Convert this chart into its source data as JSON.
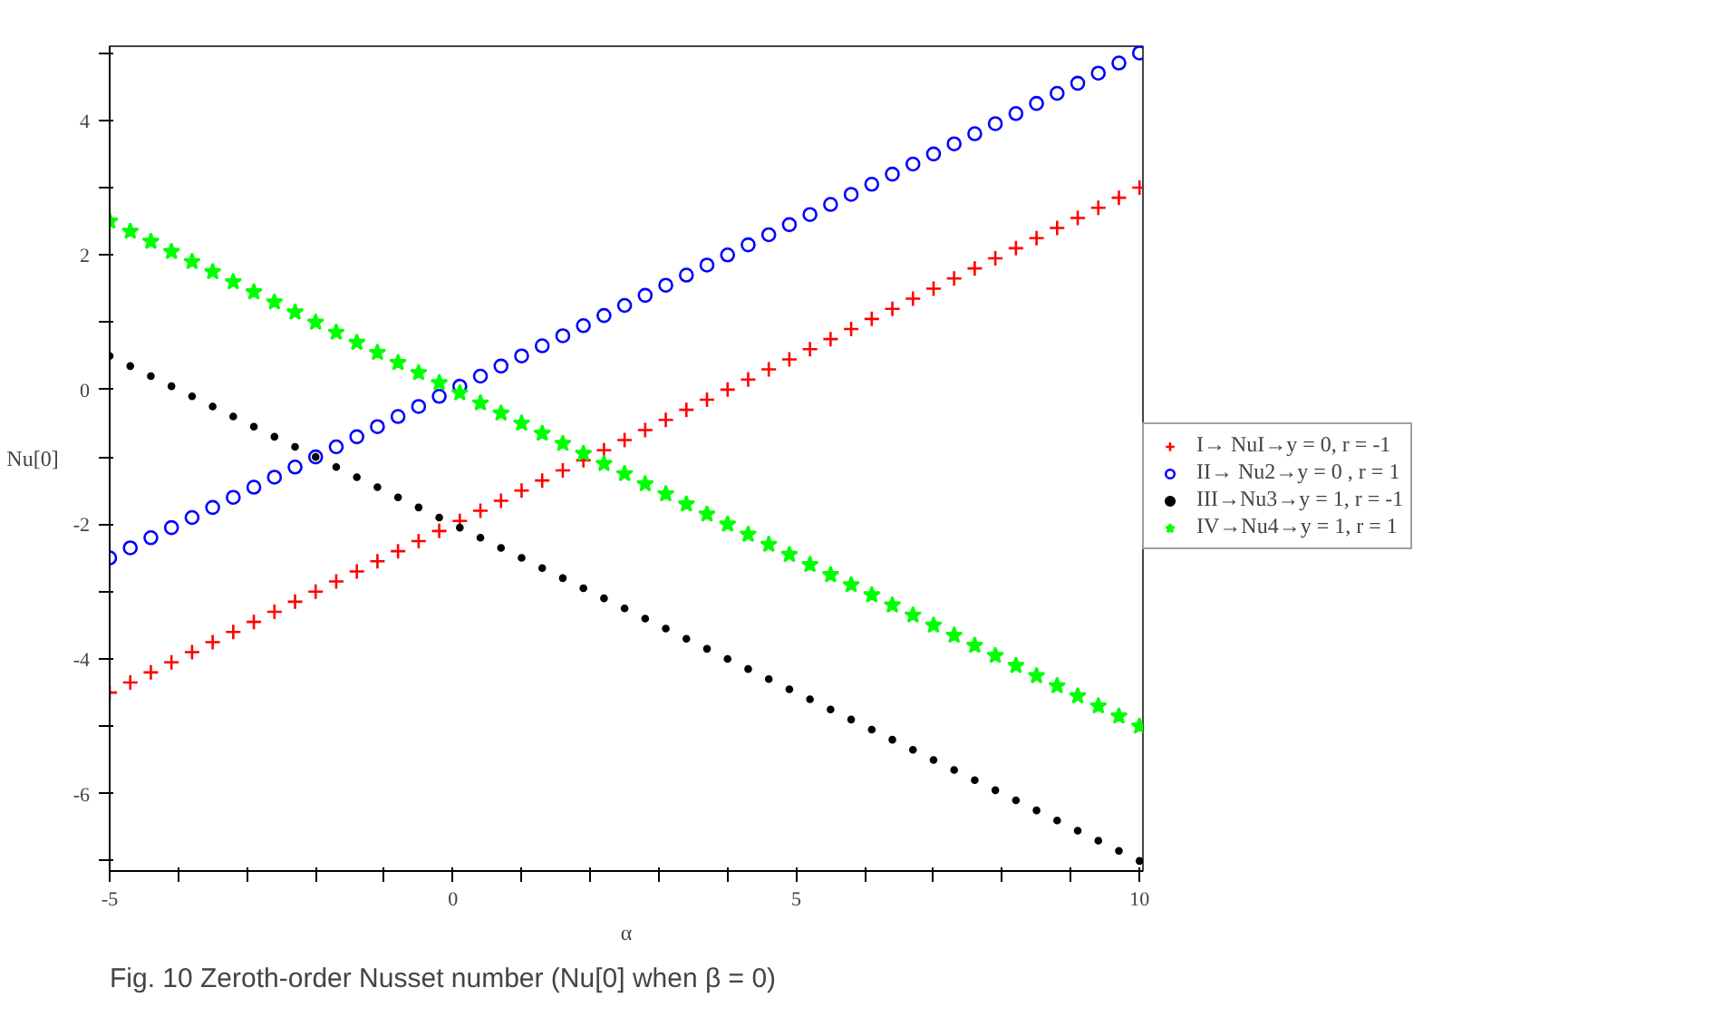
{
  "chart_data": {
    "type": "scatter",
    "xlabel": "α",
    "ylabel": "Nu[0]",
    "annotations": [
      "Fig. 10 Zeroth-order Nusset number (Nu[0] when β = 0)"
    ],
    "x": [
      -5,
      -4.7,
      -4.4,
      -4.1,
      -3.8,
      -3.5,
      -3.2,
      -2.9,
      -2.6,
      -2.3,
      -2,
      -1.7,
      -1.4,
      -1.1,
      -0.8,
      -0.5,
      -0.2,
      0.1,
      0.4,
      0.7,
      1,
      1.3,
      1.6,
      1.9,
      2.2,
      2.5,
      2.8,
      3.1,
      3.4,
      3.7,
      4,
      4.3,
      4.6,
      4.9,
      5.2,
      5.5,
      5.8,
      6.1,
      6.4,
      6.7,
      7,
      7.3,
      7.6,
      7.9,
      8.2,
      8.5,
      8.8,
      9.1,
      9.4,
      9.7,
      10
    ],
    "series": [
      {
        "name": "I→ NuI→y = 0, r = -1",
        "color": "#ff0000",
        "marker": "cross",
        "values": [
          -4.5,
          -4.35,
          -4.2,
          -4.05,
          -3.9,
          -3.75,
          -3.6,
          -3.45,
          -3.3,
          -3.15,
          -3,
          -2.85,
          -2.7,
          -2.55,
          -2.4,
          -2.25,
          -2.1,
          -1.95,
          -1.8,
          -1.65,
          -1.5,
          -1.35,
          -1.2,
          -1.05,
          -0.9,
          -0.75,
          -0.6,
          -0.45,
          -0.3,
          -0.15,
          0,
          0.15,
          0.3,
          0.45,
          0.6,
          0.75,
          0.9,
          1.05,
          1.2,
          1.35,
          1.5,
          1.65,
          1.8,
          1.95,
          2.1,
          2.25,
          2.4,
          2.55,
          2.7,
          2.85,
          3
        ]
      },
      {
        "name": "II→ Nu2→y = 0 , r = 1",
        "color": "#0000ff",
        "marker": "circle",
        "values": [
          -2.5,
          -2.35,
          -2.2,
          -2.05,
          -1.9,
          -1.75,
          -1.6,
          -1.45,
          -1.3,
          -1.15,
          -1,
          -0.85,
          -0.7,
          -0.55,
          -0.4,
          -0.25,
          -0.1,
          0.05,
          0.2,
          0.35,
          0.5,
          0.65,
          0.8,
          0.95,
          1.1,
          1.25,
          1.4,
          1.55,
          1.7,
          1.85,
          2,
          2.15,
          2.3,
          2.45,
          2.6,
          2.75,
          2.9,
          3.05,
          3.2,
          3.35,
          3.5,
          3.65,
          3.8,
          3.95,
          4.1,
          4.25,
          4.4,
          4.55,
          4.7,
          4.85,
          5
        ]
      },
      {
        "name": "III→Nu3→y = 1, r = -1",
        "color": "#000000",
        "values": [
          0.5,
          0.35,
          0.2,
          0.05,
          -0.1,
          -0.25,
          -0.4,
          -0.55,
          -0.7,
          -0.85,
          -1,
          -1.15,
          -1.3,
          -1.45,
          -1.6,
          -1.75,
          -1.9,
          -2.05,
          -2.2,
          -2.35,
          -2.5,
          -2.65,
          -2.8,
          -2.95,
          -3.1,
          -3.25,
          -3.4,
          -3.55,
          -3.7,
          -3.85,
          -4,
          -4.15,
          -4.3,
          -4.45,
          -4.6,
          -4.75,
          -4.9,
          -5.05,
          -5.2,
          -5.35,
          -5.5,
          -5.65,
          -5.8,
          -5.95,
          -6.1,
          -6.25,
          -6.4,
          -6.55,
          -6.7,
          -6.85,
          -7
        ]
      },
      {
        "name": "IV→Nu4→y = 1, r = 1",
        "color": "#00ff00",
        "marker": "star",
        "values": [
          2.5,
          2.35,
          2.2,
          2.05,
          1.9,
          1.75,
          1.6,
          1.45,
          1.3,
          1.15,
          1,
          0.85,
          0.7,
          0.55,
          0.4,
          0.25,
          0.1,
          -0.05,
          -0.2,
          -0.35,
          -0.5,
          -0.65,
          -0.8,
          -0.95,
          -1.1,
          -1.25,
          -1.4,
          -1.55,
          -1.7,
          -1.85,
          -2,
          -2.15,
          -2.3,
          -2.45,
          -2.6,
          -2.75,
          -2.9,
          -3.05,
          -3.2,
          -3.35,
          -3.5,
          -3.65,
          -3.8,
          -3.95,
          -4.1,
          -4.25,
          -4.4,
          -4.55,
          -4.7,
          -4.85,
          -5
        ]
      }
    ],
    "xlim": [
      -5,
      10.05
    ],
    "ylim": [
      -7.15,
      5.1
    ],
    "xticks": [
      -5,
      {
        "value": -4,
        "label": null
      },
      {
        "value": -3,
        "label": null
      },
      {
        "value": -2,
        "label": null
      },
      {
        "value": -1,
        "label": null
      },
      0,
      {
        "value": 1,
        "label": null
      },
      {
        "value": 2,
        "label": null
      },
      {
        "value": 3,
        "label": null
      },
      {
        "value": 4,
        "label": null
      },
      5,
      {
        "value": 6,
        "label": null
      },
      {
        "value": 7,
        "label": null
      },
      {
        "value": 8,
        "label": null
      },
      {
        "value": 9,
        "label": null
      },
      10
    ],
    "yticks": [
      {
        "value": -7,
        "label": null
      },
      -6,
      {
        "value": -5,
        "label": null
      },
      -4,
      {
        "value": -3,
        "label": null
      },
      -2,
      {
        "value": -1,
        "label": null
      },
      0,
      {
        "value": 1,
        "label": null
      },
      2,
      {
        "value": 3,
        "label": null
      },
      4,
      {
        "value": 5,
        "label": null
      }
    ],
    "grid": false,
    "legend": "right"
  }
}
